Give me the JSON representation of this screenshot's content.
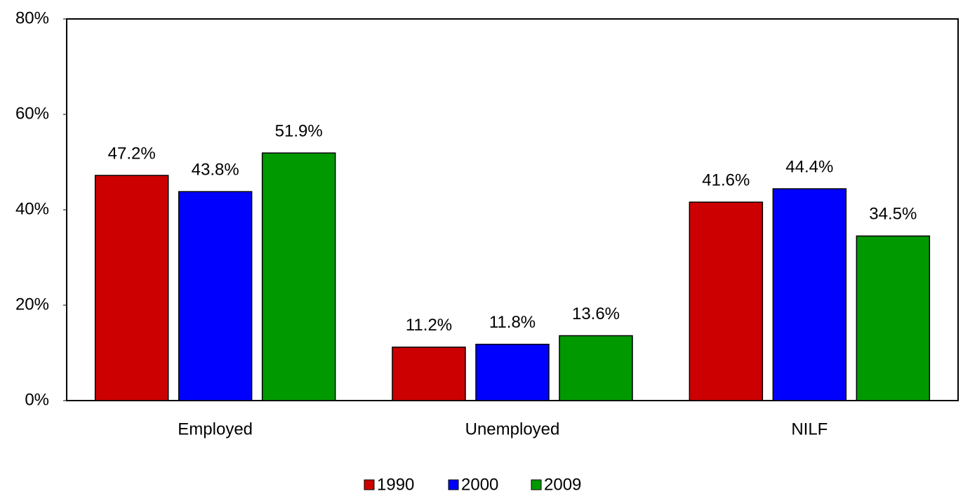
{
  "chart_data": {
    "type": "bar",
    "categories": [
      "Employed",
      "Unemployed",
      "NILF"
    ],
    "series": [
      {
        "name": "1990",
        "color": "#cc0000",
        "values": [
          47.2,
          11.2,
          41.6
        ],
        "value_labels": [
          "47.2%",
          "11.2%",
          "41.6%"
        ]
      },
      {
        "name": "2000",
        "color": "#0000ff",
        "values": [
          43.8,
          11.8,
          44.4
        ],
        "value_labels": [
          "43.8%",
          "11.8%",
          "44.4%"
        ]
      },
      {
        "name": "2009",
        "color": "#009900",
        "values": [
          51.9,
          13.6,
          34.5
        ],
        "value_labels": [
          "51.9%",
          "13.6%",
          "34.5%"
        ]
      }
    ],
    "ylim": [
      0,
      80
    ],
    "yticks": [
      {
        "value": 0,
        "label": "0%"
      },
      {
        "value": 20,
        "label": "20%"
      },
      {
        "value": 40,
        "label": "40%"
      },
      {
        "value": 60,
        "label": "60%"
      },
      {
        "value": 80,
        "label": "80%"
      }
    ],
    "grid": false,
    "legend": "bottom"
  }
}
